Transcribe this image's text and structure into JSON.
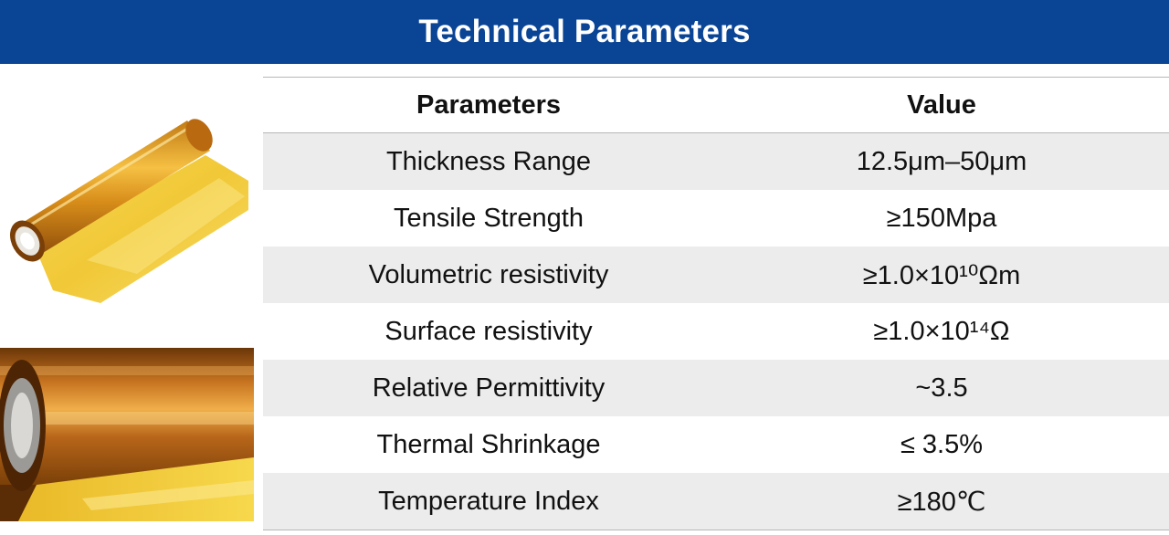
{
  "banner": {
    "title": "Technical Parameters"
  },
  "table": {
    "headers": {
      "parameter": "Parameters",
      "value": "Value"
    },
    "rows": [
      {
        "parameter": "Thickness Range",
        "value": "12.5μm–50μm"
      },
      {
        "parameter": "Tensile Strength",
        "value": "≥150Mpa"
      },
      {
        "parameter": "Volumetric resistivity",
        "value": "≥1.0×10¹⁰Ωm"
      },
      {
        "parameter": "Surface resistivity",
        "value": "≥1.0×10¹⁴Ω"
      },
      {
        "parameter": "Relative Permittivity",
        "value": "~3.5"
      },
      {
        "parameter": "Thermal Shrinkage",
        "value": "≤ 3.5%"
      },
      {
        "parameter": "Temperature Index",
        "value": "≥180℃"
      }
    ]
  },
  "colors": {
    "banner_background": "#0a4495",
    "banner_text": "#ffffff",
    "row_shade": "#ececec",
    "rule_line": "#b7b7b7",
    "film_amber": "#e0a21a",
    "film_yellow": "#f2cc38"
  },
  "images": [
    {
      "name": "polyimide-film-roll-photo-unrolled"
    },
    {
      "name": "polyimide-film-roll-photo-closeup"
    }
  ]
}
